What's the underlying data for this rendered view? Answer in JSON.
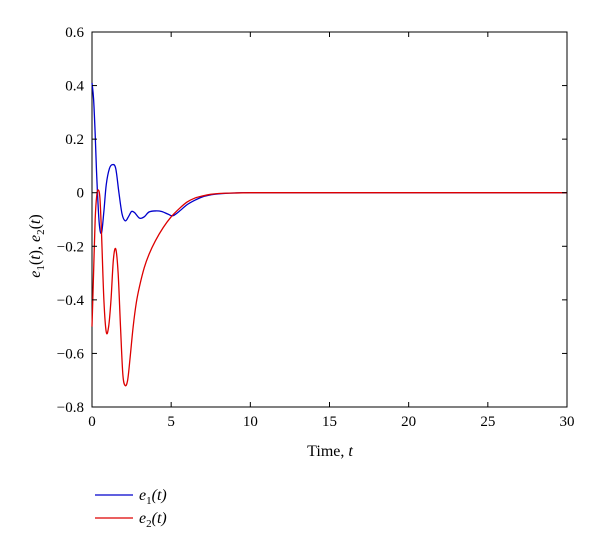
{
  "chart_data": {
    "type": "line",
    "xlabel": "Time, t",
    "ylabel": "e1(t), e2(t)",
    "xlim": [
      0,
      30
    ],
    "ylim": [
      -0.8,
      0.6
    ],
    "x_ticks": [
      "0",
      "5",
      "10",
      "15",
      "20",
      "25",
      "30"
    ],
    "y_ticks": [
      "−0.8",
      "−0.6",
      "−0.4",
      "−0.2",
      "0",
      "0.2",
      "0.4",
      "0.6"
    ],
    "grid": false,
    "legend_position": "bottom-left outside",
    "series": [
      {
        "name": "e1(t)",
        "color": "#0000cc",
        "x": [
          0,
          0.1,
          0.2,
          0.3,
          0.45,
          0.6,
          0.75,
          0.9,
          1.1,
          1.3,
          1.5,
          1.7,
          1.9,
          2.1,
          2.3,
          2.5,
          2.7,
          3.0,
          3.3,
          3.6,
          4.0,
          4.4,
          4.8,
          5.1,
          5.5,
          6.0,
          6.5,
          7.0,
          7.5,
          8.0,
          9.0,
          10,
          12,
          15,
          20,
          25,
          30
        ],
        "y": [
          0.41,
          0.35,
          0.22,
          0.06,
          -0.11,
          -0.15,
          -0.07,
          0.03,
          0.09,
          0.105,
          0.09,
          0.0,
          -0.08,
          -0.105,
          -0.09,
          -0.07,
          -0.075,
          -0.095,
          -0.09,
          -0.072,
          -0.068,
          -0.07,
          -0.08,
          -0.086,
          -0.07,
          -0.045,
          -0.028,
          -0.015,
          -0.008,
          -0.004,
          -0.001,
          0,
          0,
          0,
          0,
          0,
          0
        ]
      },
      {
        "name": "e2(t)",
        "color": "#dd0000",
        "x": [
          0,
          0.1,
          0.2,
          0.3,
          0.4,
          0.5,
          0.6,
          0.75,
          0.9,
          1.05,
          1.2,
          1.35,
          1.5,
          1.65,
          1.8,
          1.95,
          2.1,
          2.25,
          2.4,
          2.6,
          2.8,
          3.0,
          3.3,
          3.6,
          4.0,
          4.5,
          5.0,
          5.5,
          6.0,
          6.5,
          7.0,
          7.5,
          8.0,
          9.0,
          10,
          12,
          15,
          20,
          25,
          30
        ],
        "y": [
          -0.5,
          -0.3,
          -0.1,
          -0.01,
          0.01,
          -0.02,
          -0.15,
          -0.4,
          -0.52,
          -0.5,
          -0.4,
          -0.25,
          -0.21,
          -0.3,
          -0.5,
          -0.68,
          -0.72,
          -0.7,
          -0.62,
          -0.5,
          -0.41,
          -0.35,
          -0.28,
          -0.23,
          -0.18,
          -0.13,
          -0.09,
          -0.06,
          -0.035,
          -0.02,
          -0.012,
          -0.006,
          -0.003,
          -0.001,
          0,
          0,
          0,
          0,
          0,
          0
        ]
      }
    ]
  },
  "legend": {
    "items": [
      {
        "base": "e",
        "sub": "1",
        "arg": "(t)",
        "color": "#0000cc"
      },
      {
        "base": "e",
        "sub": "2",
        "arg": "(t)",
        "color": "#dd0000"
      }
    ]
  }
}
